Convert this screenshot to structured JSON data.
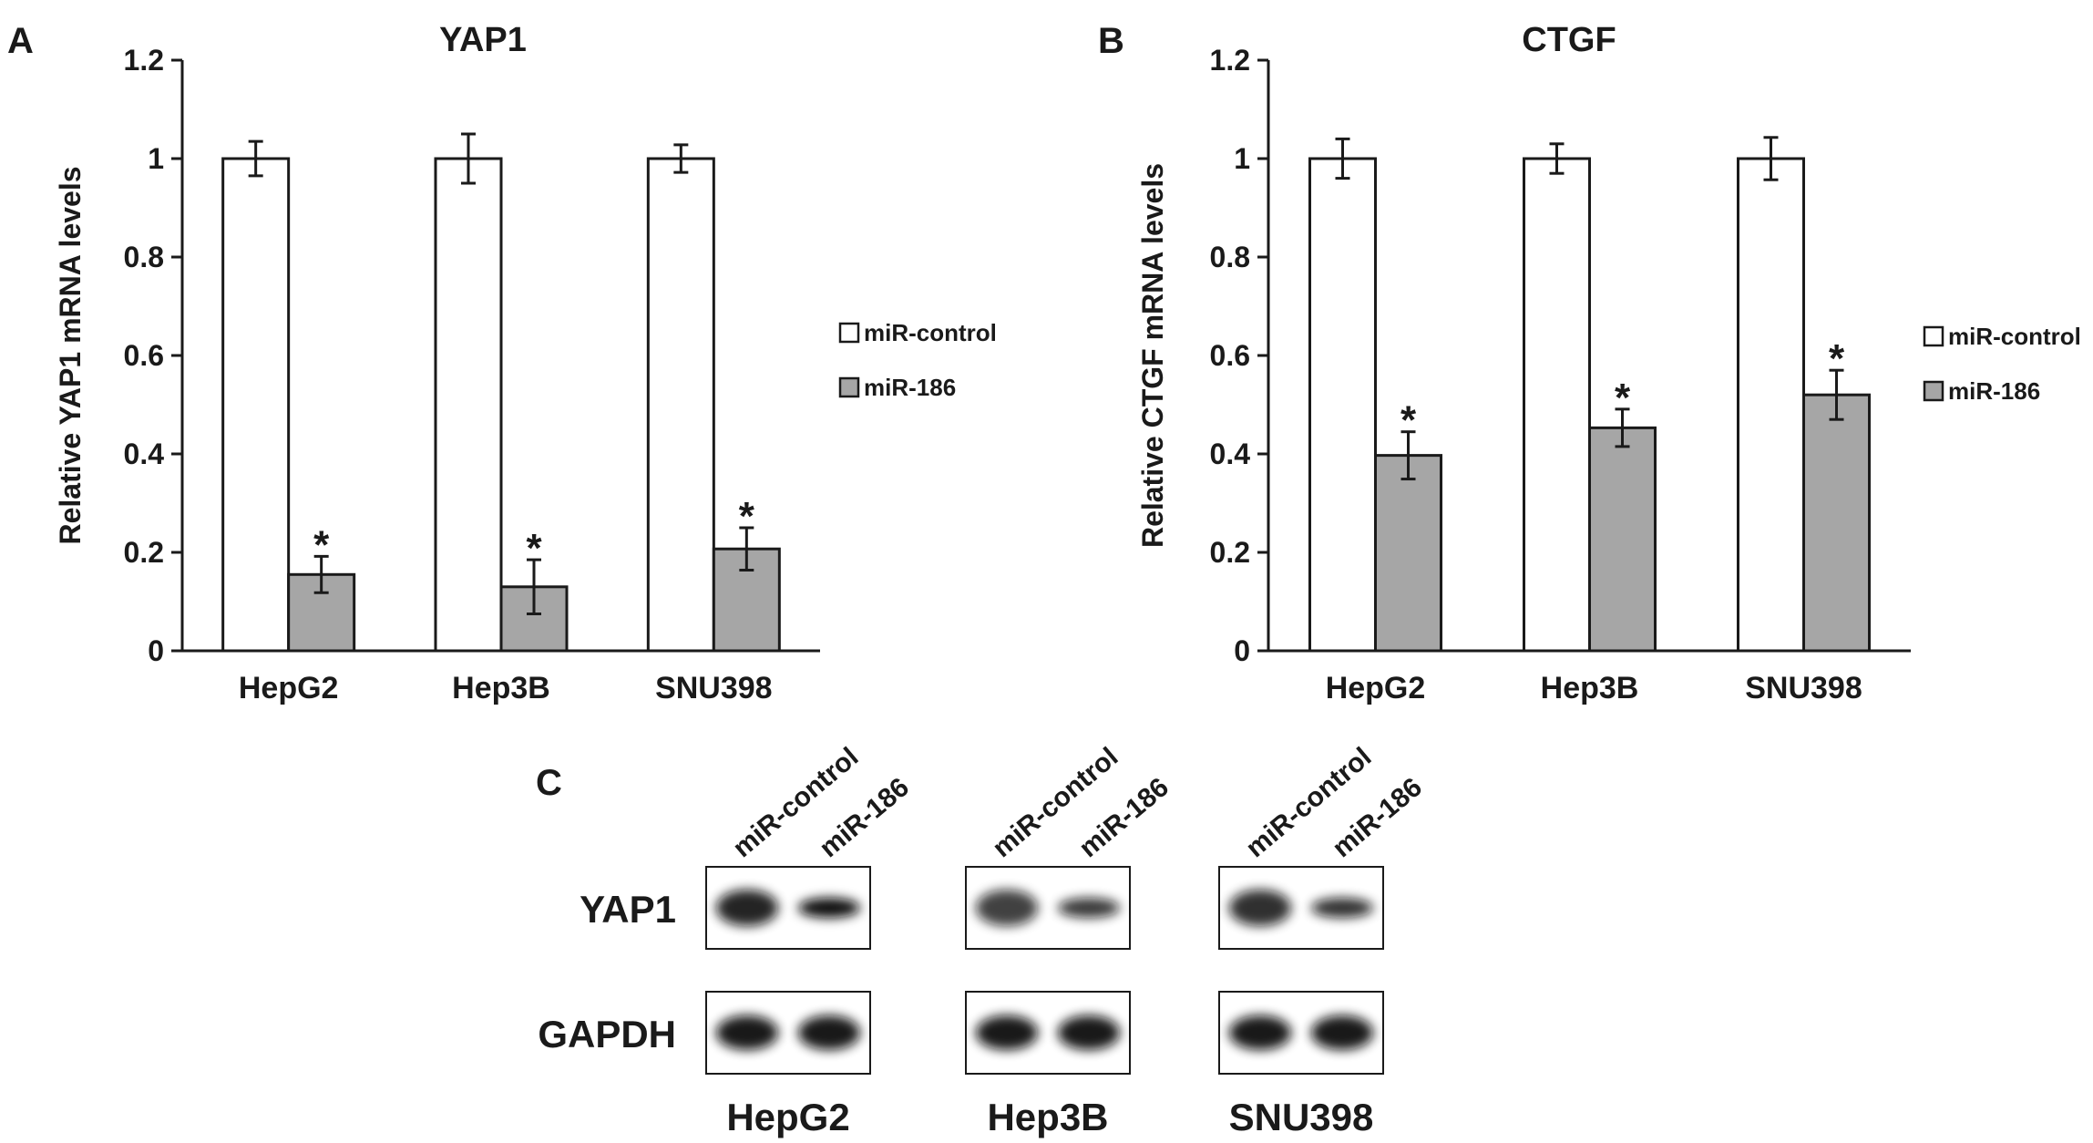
{
  "chart_data": [
    {
      "panel": "A",
      "type": "bar",
      "title": "YAP1",
      "xlabel": "",
      "ylabel": "Relative YAP1 mRNA levels",
      "ylim": [
        0,
        1.2
      ],
      "yticks": [
        0,
        0.2,
        0.4,
        0.6,
        0.8,
        1,
        1.2
      ],
      "ytick_labels": [
        "0",
        "0.2",
        "0.4",
        "0.6",
        "0.8",
        "1",
        "1.2"
      ],
      "categories": [
        "HepG2",
        "Hep3B",
        "SNU398"
      ],
      "series": [
        {
          "name": "miR-control",
          "color": "#ffffff",
          "values": [
            1.0,
            1.0,
            1.0
          ],
          "errors": [
            0.035,
            0.05,
            0.028
          ],
          "marks": [
            "",
            "",
            ""
          ]
        },
        {
          "name": "miR-186",
          "color": "#a6a6a6",
          "values": [
            0.155,
            0.13,
            0.207
          ],
          "errors": [
            0.037,
            0.055,
            0.043
          ],
          "marks": [
            "*",
            "*",
            "*"
          ]
        }
      ],
      "legend": "right",
      "grid": false
    },
    {
      "panel": "B",
      "type": "bar",
      "title": "CTGF",
      "xlabel": "",
      "ylabel": "Relative CTGF mRNA levels",
      "ylim": [
        0,
        1.2
      ],
      "yticks": [
        0,
        0.2,
        0.4,
        0.6,
        0.8,
        1,
        1.2
      ],
      "ytick_labels": [
        "0",
        "0.2",
        "0.4",
        "0.6",
        "0.8",
        "1",
        "1.2"
      ],
      "categories": [
        "HepG2",
        "Hep3B",
        "SNU398"
      ],
      "series": [
        {
          "name": "miR-control",
          "color": "#ffffff",
          "values": [
            1.0,
            1.0,
            1.0
          ],
          "errors": [
            0.04,
            0.03,
            0.043
          ],
          "marks": [
            "",
            "",
            ""
          ]
        },
        {
          "name": "miR-186",
          "color": "#a6a6a6",
          "values": [
            0.397,
            0.453,
            0.52
          ],
          "errors": [
            0.048,
            0.038,
            0.05
          ],
          "marks": [
            "*",
            "*",
            "*"
          ]
        }
      ],
      "legend": "right",
      "grid": false
    }
  ],
  "blot": {
    "panel": "C",
    "lane_labels": [
      "miR-control",
      "miR-186"
    ],
    "row_labels": [
      "YAP1",
      "GAPDH"
    ],
    "cell_lines": [
      "HepG2",
      "Hep3B",
      "SNU398"
    ]
  }
}
